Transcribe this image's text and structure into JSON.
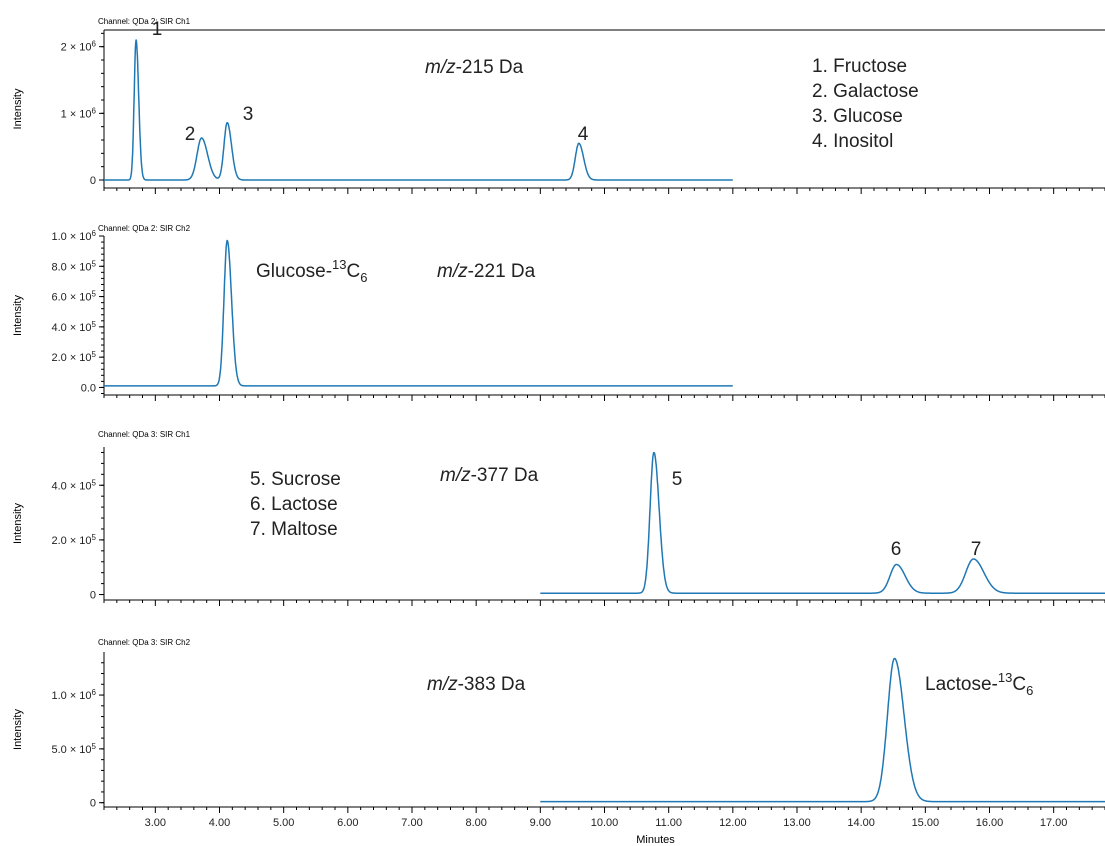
{
  "chart_data": [
    {
      "type": "line",
      "channel": "Channel: QDa 2: SIR Ch1",
      "ylabel": "Intensity",
      "xlim": [
        2.2,
        17.8
      ],
      "ylim": [
        -0.12,
        2.25
      ],
      "y_ticks": [
        {
          "v": 0,
          "label": "0"
        },
        {
          "v": 1,
          "label": "1 × 10",
          "exp": "6"
        },
        {
          "v": 2,
          "label": "2 × 10",
          "exp": "6"
        }
      ],
      "trace_range": [
        2.2,
        12.0
      ],
      "baseline": 0.0,
      "peaks": [
        {
          "label": "1",
          "rt": 2.7,
          "height": 2.1,
          "width": 0.03
        },
        {
          "label": "2",
          "rt": 3.72,
          "height": 0.63,
          "width": 0.07
        },
        {
          "label": "3",
          "rt": 4.12,
          "height": 0.86,
          "width": 0.05
        },
        {
          "label": "4",
          "rt": 9.6,
          "height": 0.55,
          "width": 0.055
        }
      ],
      "mz": {
        "prefix": "m/z",
        "text": "-215 Da"
      },
      "legend": [
        "1. Fructose",
        "2. Galactose",
        "3. Glucose",
        "4. Inositol"
      ]
    },
    {
      "type": "line",
      "channel": "Channel: QDa 2: SIR Ch2",
      "ylabel": "Intensity",
      "xlim": [
        2.2,
        17.8
      ],
      "ylim": [
        -0.05,
        1.0
      ],
      "y_ticks": [
        {
          "v": 0,
          "label": "0.0"
        },
        {
          "v": 0.2,
          "label": "2.0 × 10",
          "exp": "5"
        },
        {
          "v": 0.4,
          "label": "4.0 × 10",
          "exp": "5"
        },
        {
          "v": 0.6,
          "label": "6.0 × 10",
          "exp": "5"
        },
        {
          "v": 0.8,
          "label": "8.0 × 10",
          "exp": "5"
        },
        {
          "v": 1.0,
          "label": "1.0 × 10",
          "exp": "6"
        }
      ],
      "trace_range": [
        2.2,
        12.0
      ],
      "baseline": 0.01,
      "peaks": [
        {
          "label": "",
          "rt": 4.12,
          "height": 0.96,
          "width": 0.05
        }
      ],
      "mz": {
        "prefix": "m/z",
        "text": "-221 Da"
      },
      "annotation": {
        "text": "Glucose-",
        "sup": "13",
        "after": "C",
        "sub": "6"
      }
    },
    {
      "type": "line",
      "channel": "Channel: QDa 3: SIR Ch1",
      "ylabel": "Intensity",
      "xlim": [
        2.2,
        17.8
      ],
      "ylim": [
        -0.2,
        5.4
      ],
      "y_ticks": [
        {
          "v": 0,
          "label": "0"
        },
        {
          "v": 2,
          "label": "2.0 × 10",
          "exp": "5"
        },
        {
          "v": 4,
          "label": "4.0 × 10",
          "exp": "5"
        }
      ],
      "trace_range": [
        9.0,
        17.8
      ],
      "baseline": 0.05,
      "peaks": [
        {
          "label": "5",
          "rt": 10.77,
          "height": 5.15,
          "width": 0.06
        },
        {
          "label": "6",
          "rt": 14.55,
          "height": 1.05,
          "width": 0.1
        },
        {
          "label": "7",
          "rt": 15.75,
          "height": 1.25,
          "width": 0.12
        }
      ],
      "mz": {
        "prefix": "m/z",
        "text": "-377 Da"
      },
      "legend": [
        "5. Sucrose",
        "6. Lactose",
        "7. Maltose"
      ]
    },
    {
      "type": "line",
      "channel": "Channel: QDa 3: SIR Ch2",
      "ylabel": "Intensity",
      "xlabel": "Minutes",
      "xlim": [
        2.2,
        17.8
      ],
      "ylim": [
        -0.04,
        1.4
      ],
      "y_ticks": [
        {
          "v": 0,
          "label": "0"
        },
        {
          "v": 0.5,
          "label": "5.0 × 10",
          "exp": "5"
        },
        {
          "v": 1.0,
          "label": "1.0 × 10",
          "exp": "6"
        }
      ],
      "x_ticks": [
        "3.00",
        "4.00",
        "5.00",
        "6.00",
        "7.00",
        "8.00",
        "9.00",
        "10.00",
        "11.00",
        "12.00",
        "13.00",
        "14.00",
        "15.00",
        "16.00",
        "17.00"
      ],
      "trace_range": [
        9.0,
        17.8
      ],
      "baseline": 0.01,
      "peaks": [
        {
          "label": "",
          "rt": 14.52,
          "height": 1.33,
          "width": 0.11
        }
      ],
      "mz": {
        "prefix": "m/z",
        "text": "-383 Da"
      },
      "annotation": {
        "text": "Lactose-",
        "sup": "13",
        "after": "C",
        "sub": "6"
      }
    }
  ]
}
